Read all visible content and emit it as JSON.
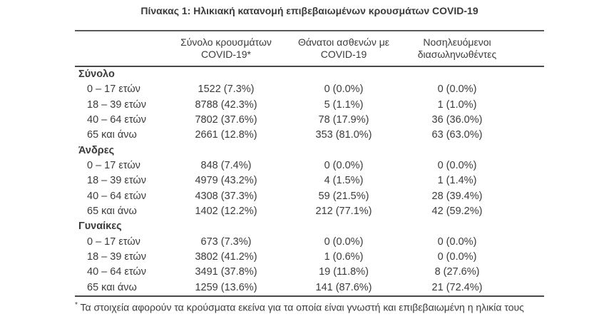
{
  "page": {
    "title": "Πίνακας 1: Ηλικιακή κατανομή επιβεβαιωμένων κρουσμάτων COVID-19"
  },
  "colors": {
    "text": "#3b3b3b",
    "rule": "#4a4a4a",
    "background": "#ffffff"
  },
  "table": {
    "columns": [
      {
        "line1": "Σύνολο κρουσμάτων",
        "line2": "COVID-19*"
      },
      {
        "line1": "Θάνατοι ασθενών με",
        "line2": "COVID-19"
      },
      {
        "line1": "Νοσηλευόμενοι",
        "line2": "διασωληνωθέντες"
      }
    ],
    "sections": [
      {
        "label": "Σύνολο",
        "rows": [
          {
            "label": "0 – 17 ετών",
            "cases": "1522 (7.3%)",
            "deaths": "0 (0.0%)",
            "intubated": "0 (0.0%)"
          },
          {
            "label": "18 – 39 ετών",
            "cases": "8788 (42.3%)",
            "deaths": "5 (1.1%)",
            "intubated": "1 (1.0%)"
          },
          {
            "label": "40 – 64 ετών",
            "cases": "7802 (37.6%)",
            "deaths": "78 (17.9%)",
            "intubated": "36 (36.0%)"
          },
          {
            "label": "65 και άνω",
            "cases": "2661 (12.8%)",
            "deaths": "353 (81.0%)",
            "intubated": "63 (63.0%)"
          }
        ]
      },
      {
        "label": "Άνδρες",
        "rows": [
          {
            "label": "0 – 17 ετών",
            "cases": "848 (7.4%)",
            "deaths": "0 (0.0%)",
            "intubated": "0 (0.0%)"
          },
          {
            "label": "18 – 39 ετών",
            "cases": "4979 (43.2%)",
            "deaths": "4 (1.5%)",
            "intubated": "1 (1.4%)"
          },
          {
            "label": "40 – 64 ετών",
            "cases": "4308 (37.3%)",
            "deaths": "59 (21.5%)",
            "intubated": "28 (39.4%)"
          },
          {
            "label": "65 και άνω",
            "cases": "1402 (12.2%)",
            "deaths": "212 (77.1%)",
            "intubated": "42 (59.2%)"
          }
        ]
      },
      {
        "label": "Γυναίκες",
        "rows": [
          {
            "label": "0 – 17 ετών",
            "cases": "673 (7.3%)",
            "deaths": "0 (0.0%)",
            "intubated": "0 (0.0%)"
          },
          {
            "label": "18 – 39 ετών",
            "cases": "3802 (41.2%)",
            "deaths": "1 (0.6%)",
            "intubated": "0 (0.0%)"
          },
          {
            "label": "40 – 64 ετών",
            "cases": "3491 (37.8%)",
            "deaths": "19 (11.8%)",
            "intubated": "8 (27.6%)"
          },
          {
            "label": "65 και άνω",
            "cases": "1259 (13.6%)",
            "deaths": "141 (87.6%)",
            "intubated": "21 (72.4%)"
          }
        ]
      }
    ]
  },
  "footnote": {
    "marker": "*",
    "text": "Τα στοιχεία αφορούν τα κρούσματα εκείνα για τα οποία είναι γνωστή και επιβεβαιωμένη η ηλικία τους"
  }
}
